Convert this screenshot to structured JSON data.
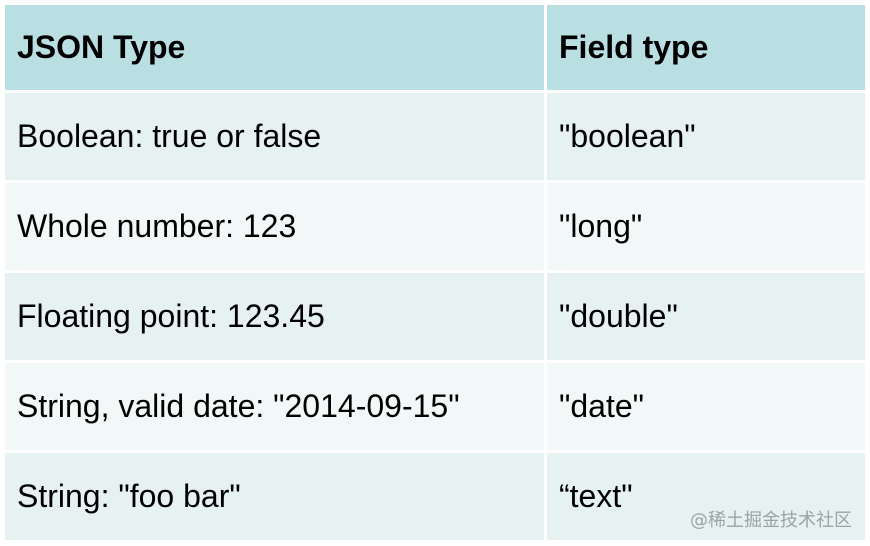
{
  "table": {
    "headers": [
      "JSON Type",
      "Field type"
    ],
    "rows": [
      [
        "Boolean: true or false",
        "\"boolean\""
      ],
      [
        "Whole number: 123",
        "\"long\""
      ],
      [
        "Floating point: 123.45",
        "\"double\""
      ],
      [
        "String, valid date: \"2014-09-15\"",
        "\"date\""
      ],
      [
        "String: \"foo bar\"",
        "“text\""
      ]
    ]
  },
  "colors": {
    "header_bg": "#b9dfe3",
    "row_dark": "#e6f1f2",
    "row_light": "#f2f8f8"
  },
  "watermark": "@稀土掘金技术社区"
}
